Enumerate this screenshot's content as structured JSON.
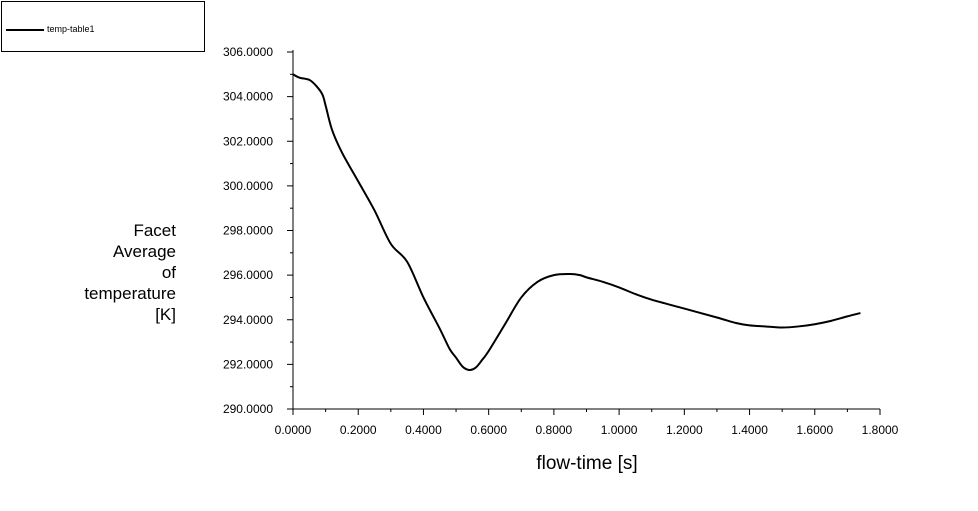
{
  "chart_data": {
    "type": "line",
    "legend": {
      "entries": [
        "temp-table1"
      ],
      "placement": "top-left"
    },
    "xlabel": "flow-time [s]",
    "ylabel_lines": [
      "Facet",
      "Average",
      "of",
      "temperature",
      "[K]"
    ],
    "xlim": [
      0,
      1.8
    ],
    "ylim": [
      290,
      306
    ],
    "x_ticks": [
      0.0,
      0.2,
      0.4,
      0.6,
      0.8,
      1.0,
      1.2,
      1.4,
      1.6,
      1.8
    ],
    "x_tick_labels": [
      "0.0000",
      "0.2000",
      "0.4000",
      "0.6000",
      "0.8000",
      "1.0000",
      "1.2000",
      "1.4000",
      "1.6000",
      "1.8000"
    ],
    "y_ticks": [
      290,
      292,
      294,
      296,
      298,
      300,
      302,
      304,
      306
    ],
    "y_tick_labels": [
      "290.0000",
      "292.0000",
      "294.0000",
      "296.0000",
      "298.0000",
      "300.0000",
      "302.0000",
      "304.0000",
      "306.0000"
    ],
    "grid": false,
    "series": [
      {
        "name": "temp-table1",
        "color": "#000000",
        "x": [
          0.0,
          0.02,
          0.05,
          0.07,
          0.09,
          0.1,
          0.12,
          0.15,
          0.2,
          0.25,
          0.3,
          0.35,
          0.4,
          0.45,
          0.48,
          0.5,
          0.52,
          0.54,
          0.56,
          0.58,
          0.6,
          0.65,
          0.7,
          0.75,
          0.8,
          0.85,
          0.88,
          0.9,
          0.95,
          1.0,
          1.05,
          1.1,
          1.2,
          1.3,
          1.36,
          1.4,
          1.45,
          1.5,
          1.55,
          1.6,
          1.65,
          1.7,
          1.74
        ],
        "y": [
          305.0,
          304.85,
          304.75,
          304.5,
          304.1,
          303.6,
          302.5,
          301.5,
          300.2,
          298.9,
          297.4,
          296.6,
          295.0,
          293.6,
          292.7,
          292.3,
          291.9,
          291.75,
          291.85,
          292.2,
          292.6,
          293.8,
          295.0,
          295.7,
          296.0,
          296.05,
          296.0,
          295.9,
          295.7,
          295.45,
          295.15,
          294.9,
          294.5,
          294.1,
          293.85,
          293.75,
          293.7,
          293.65,
          293.7,
          293.8,
          293.95,
          294.15,
          294.3
        ]
      }
    ]
  }
}
